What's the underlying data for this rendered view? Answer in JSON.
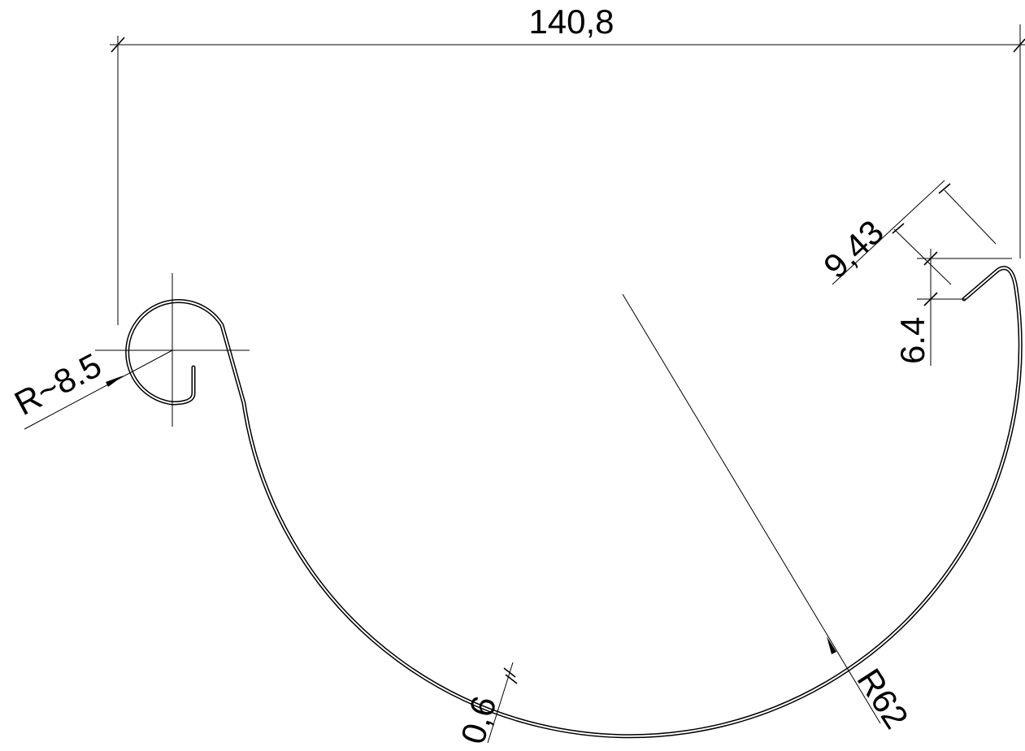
{
  "dimensions": {
    "overall_width": "140,8",
    "bead_radius": "R~8.5",
    "gutter_radius": "R62",
    "thickness": "0,6",
    "lip_length": "9,43",
    "lip_height": "6.4"
  }
}
